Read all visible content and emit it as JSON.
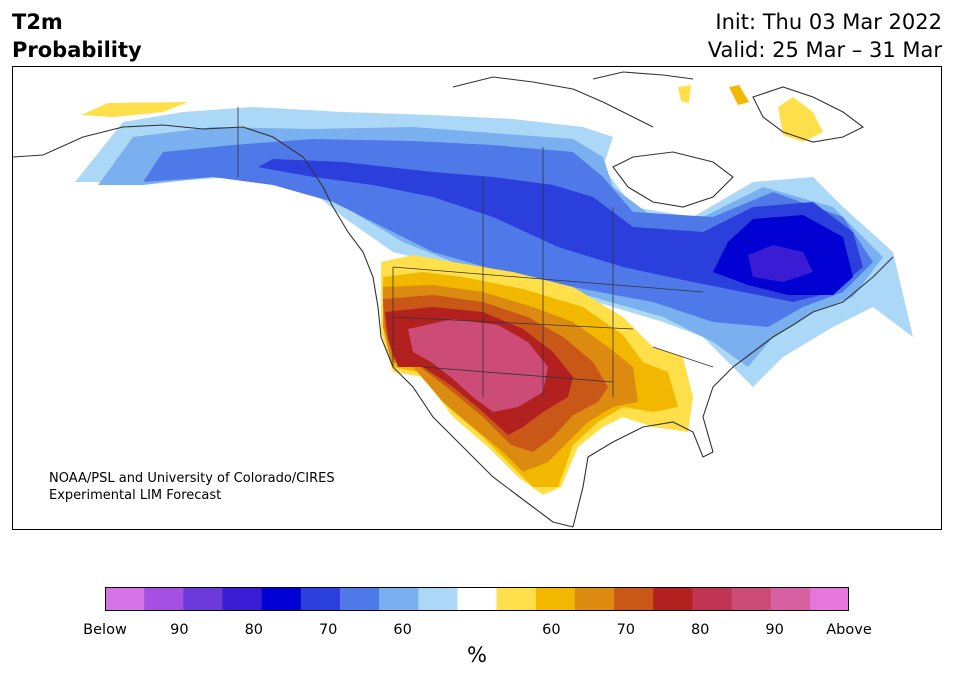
{
  "header": {
    "title_line1": "T2m",
    "title_line2": "Probability",
    "init": "Init: Thu 03 Mar 2022",
    "valid": "Valid: 25 Mar – 31 Mar"
  },
  "credit": {
    "line1": "NOAA/PSL and University of Colorado/CIRES",
    "line2": "Experimental LIM Forecast"
  },
  "colorbar": {
    "colors": [
      "#d474e8",
      "#a450e2",
      "#6c3ad8",
      "#3a1cd4",
      "#0000d2",
      "#2a3fdc",
      "#4f78e8",
      "#7aaff0",
      "#acd8f8",
      "#ffffff",
      "#ffe04a",
      "#f2b800",
      "#dd8a10",
      "#c95717",
      "#b2211f",
      "#c13453",
      "#cc4b77",
      "#d760a3",
      "#e577dc"
    ],
    "labels": [
      "Below",
      "90",
      "80",
      "70",
      "60",
      "",
      "60",
      "70",
      "80",
      "90",
      "Above"
    ],
    "unit": "%"
  },
  "map": {
    "coast_color": "#333333",
    "cold_colors": [
      "#acd8f8",
      "#7aaff0",
      "#4f78e8",
      "#2a3fdc",
      "#0000d2",
      "#3a1cd4"
    ],
    "warm_colors": [
      "#ffe04a",
      "#f2b800",
      "#dd8a10",
      "#c95717",
      "#b2211f",
      "#cc4b77"
    ]
  }
}
